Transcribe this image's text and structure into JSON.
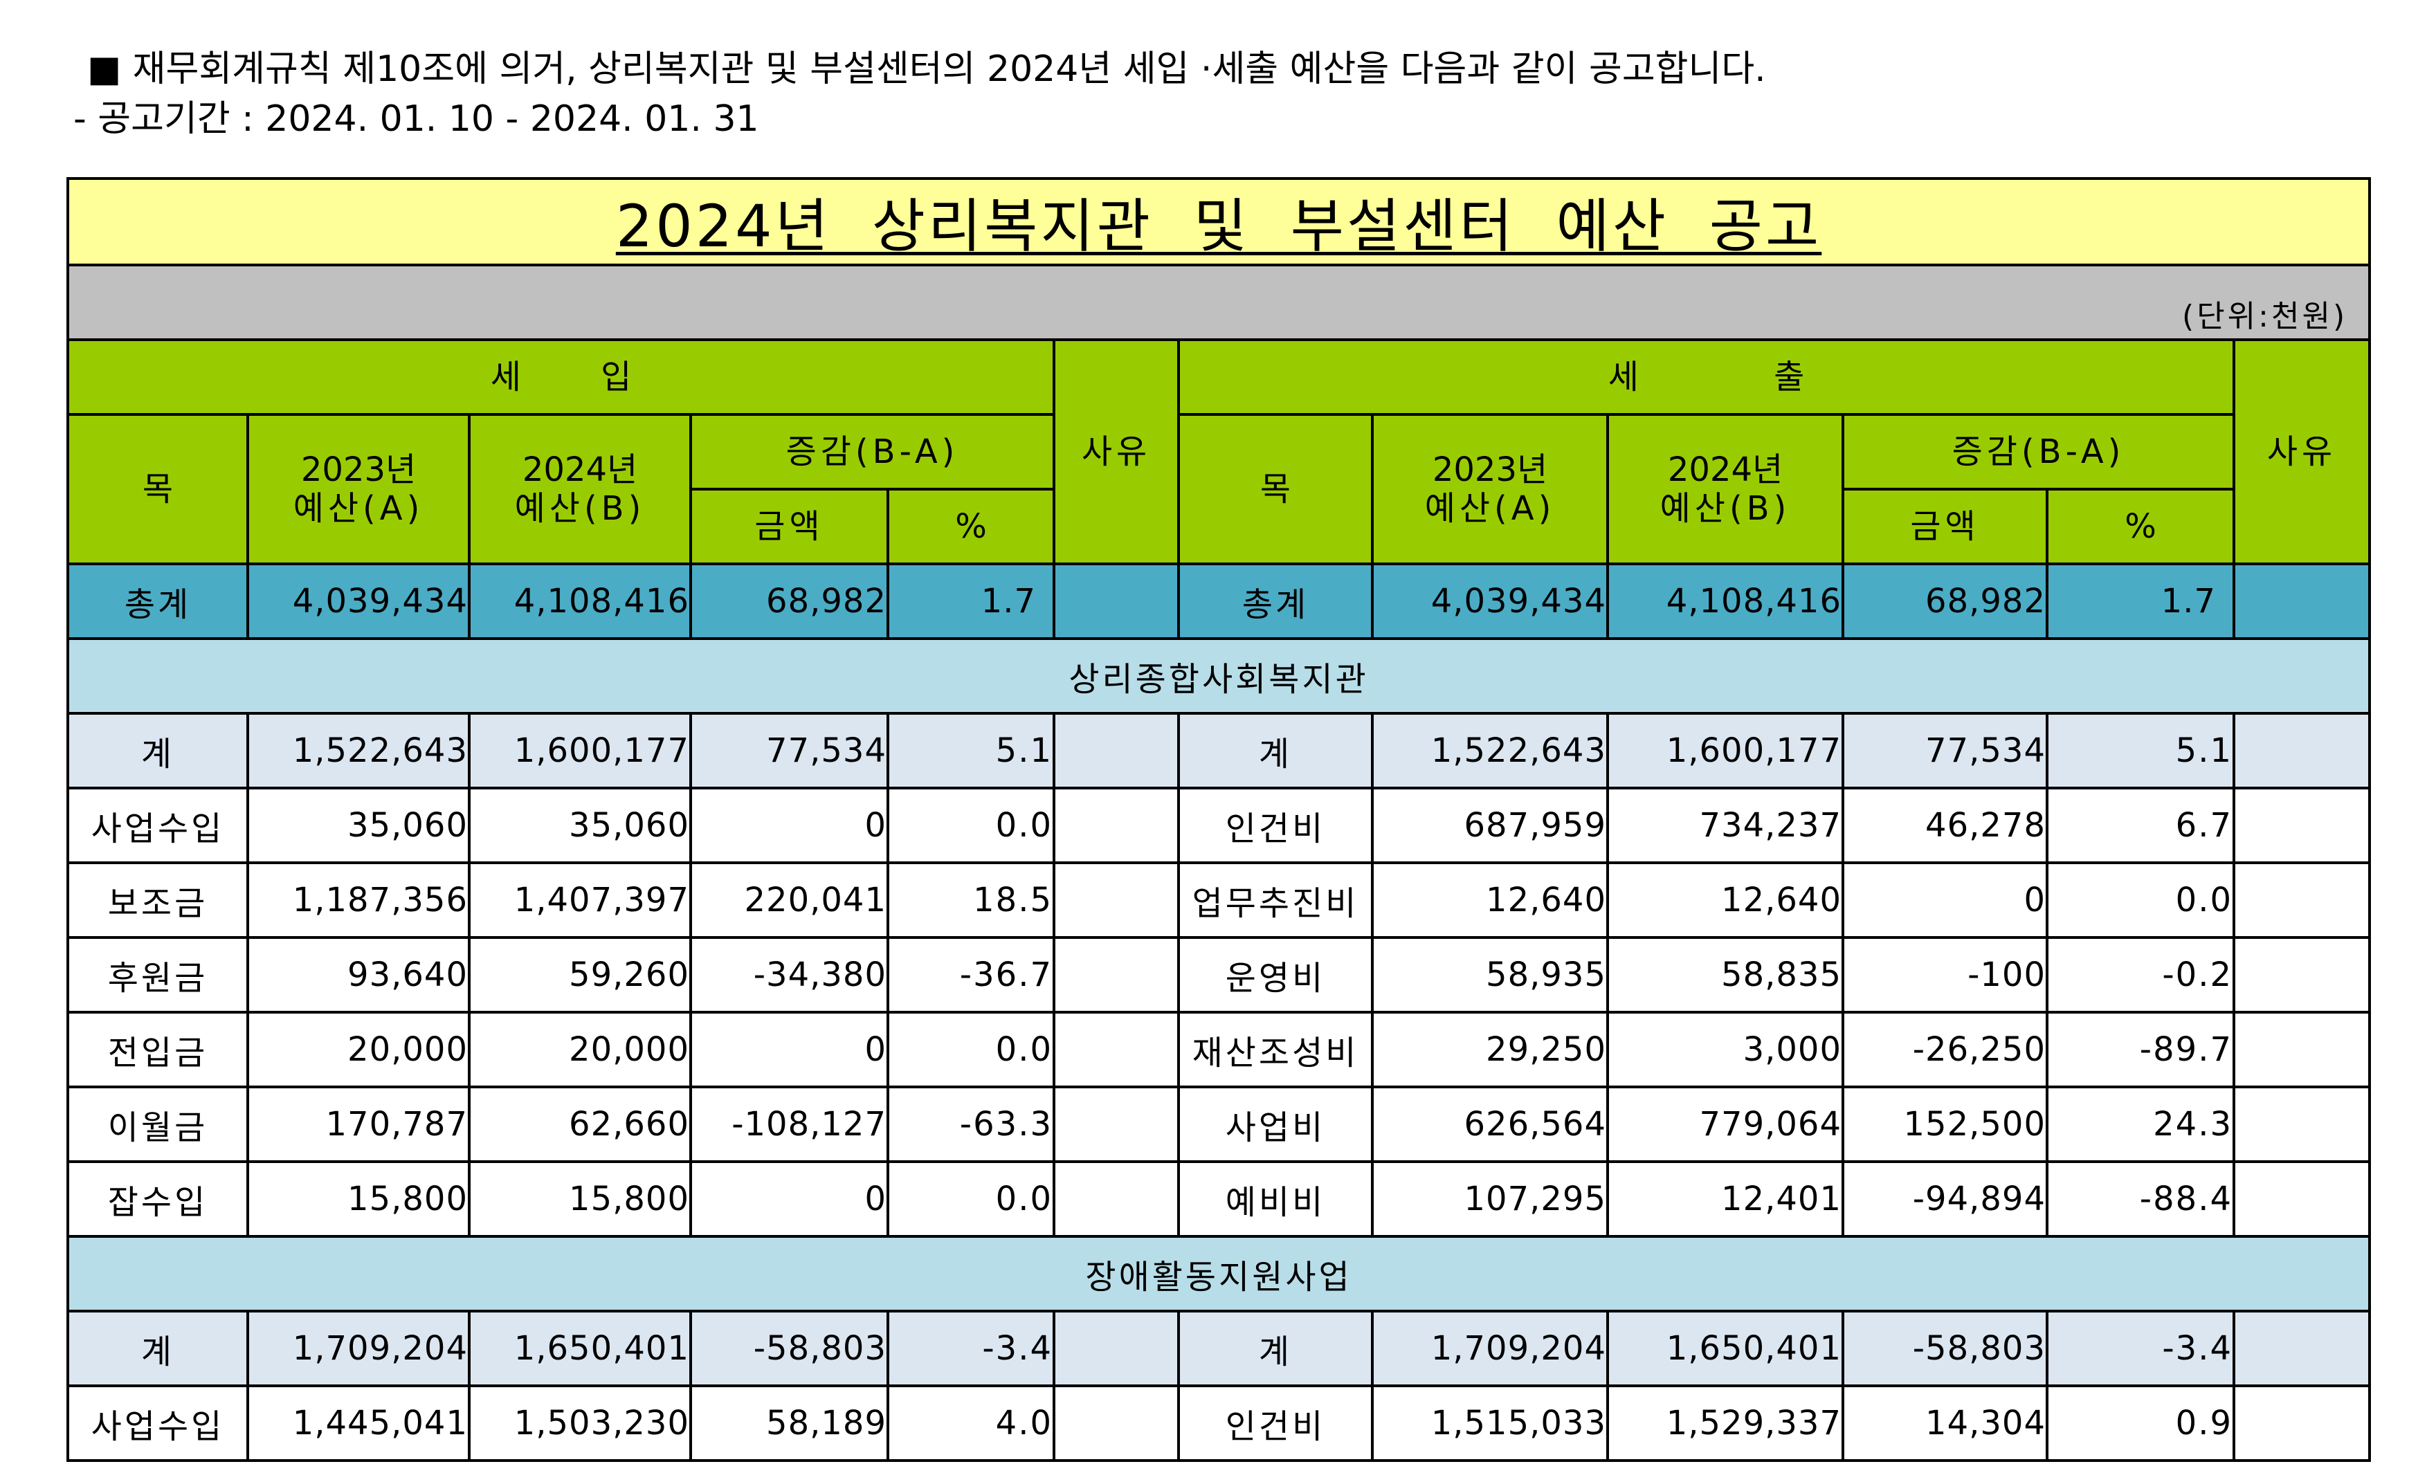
{
  "intro": {
    "line1": "■ 재무회계규칙 제10조에 의거, 상리복지관 및 부설센터의 2024년 세입 ·세출 예산을 다음과 같이 공고합니다.",
    "line2": "- 공고기간 : 2024. 01. 10 - 2024. 01. 31"
  },
  "table": {
    "title": "2024년 상리복지관 및 부설센터 예산 공고",
    "unit": "(단위:천원)",
    "colors": {
      "title_bg": "#ffff99",
      "unit_bg": "#c0c0c0",
      "header_bg": "#99cc00",
      "total_bg": "#4bacc6",
      "section_bg": "#b7dde8",
      "subtotal_bg": "#dce6f1"
    },
    "headers": {
      "revenue": "세 입",
      "expense": "세 출",
      "item": "목",
      "y2023_line1": "2023년",
      "y2023_line2": "예산(A)",
      "y2024_line1": "2024년",
      "y2024_line2": "예산(B)",
      "change": "증감(B-A)",
      "amount": "금액",
      "percent": "%",
      "reason": "사유"
    },
    "total": {
      "rev": {
        "label": "총계",
        "y2023": "4,039,434",
        "y2024": "4,108,416",
        "amount": "68,982",
        "pct": "1.7"
      },
      "exp": {
        "label": "총계",
        "y2023": "4,039,434",
        "y2024": "4,108,416",
        "amount": "68,982",
        "pct": "1.7"
      }
    },
    "sections": [
      {
        "name": "상리종합사회복지관",
        "rows": [
          {
            "rev": {
              "label": "계",
              "y2023": "1,522,643",
              "y2024": "1,600,177",
              "amount": "77,534",
              "pct": "5.1"
            },
            "exp": {
              "label": "계",
              "y2023": "1,522,643",
              "y2024": "1,600,177",
              "amount": "77,534",
              "pct": "5.1"
            }
          },
          {
            "rev": {
              "label": "사업수입",
              "y2023": "35,060",
              "y2024": "35,060",
              "amount": "0",
              "pct": "0.0"
            },
            "exp": {
              "label": "인건비",
              "y2023": "687,959",
              "y2024": "734,237",
              "amount": "46,278",
              "pct": "6.7"
            }
          },
          {
            "rev": {
              "label": "보조금",
              "y2023": "1,187,356",
              "y2024": "1,407,397",
              "amount": "220,041",
              "pct": "18.5"
            },
            "exp": {
              "label": "업무추진비",
              "y2023": "12,640",
              "y2024": "12,640",
              "amount": "0",
              "pct": "0.0"
            }
          },
          {
            "rev": {
              "label": "후원금",
              "y2023": "93,640",
              "y2024": "59,260",
              "amount": "-34,380",
              "pct": "-36.7"
            },
            "exp": {
              "label": "운영비",
              "y2023": "58,935",
              "y2024": "58,835",
              "amount": "-100",
              "pct": "-0.2"
            }
          },
          {
            "rev": {
              "label": "전입금",
              "y2023": "20,000",
              "y2024": "20,000",
              "amount": "0",
              "pct": "0.0"
            },
            "exp": {
              "label": "재산조성비",
              "y2023": "29,250",
              "y2024": "3,000",
              "amount": "-26,250",
              "pct": "-89.7"
            }
          },
          {
            "rev": {
              "label": "이월금",
              "y2023": "170,787",
              "y2024": "62,660",
              "amount": "-108,127",
              "pct": "-63.3"
            },
            "exp": {
              "label": "사업비",
              "y2023": "626,564",
              "y2024": "779,064",
              "amount": "152,500",
              "pct": "24.3"
            }
          },
          {
            "rev": {
              "label": "잡수입",
              "y2023": "15,800",
              "y2024": "15,800",
              "amount": "0",
              "pct": "0.0"
            },
            "exp": {
              "label": "예비비",
              "y2023": "107,295",
              "y2024": "12,401",
              "amount": "-94,894",
              "pct": "-88.4"
            }
          }
        ]
      },
      {
        "name": "장애활동지원사업",
        "rows": [
          {
            "rev": {
              "label": "계",
              "y2023": "1,709,204",
              "y2024": "1,650,401",
              "amount": "-58,803",
              "pct": "-3.4"
            },
            "exp": {
              "label": "계",
              "y2023": "1,709,204",
              "y2024": "1,650,401",
              "amount": "-58,803",
              "pct": "-3.4"
            }
          },
          {
            "rev": {
              "label": "사업수입",
              "y2023": "1,445,041",
              "y2024": "1,503,230",
              "amount": "58,189",
              "pct": "4.0"
            },
            "exp": {
              "label": "인건비",
              "y2023": "1,515,033",
              "y2024": "1,529,337",
              "amount": "14,304",
              "pct": "0.9"
            }
          }
        ]
      }
    ]
  }
}
